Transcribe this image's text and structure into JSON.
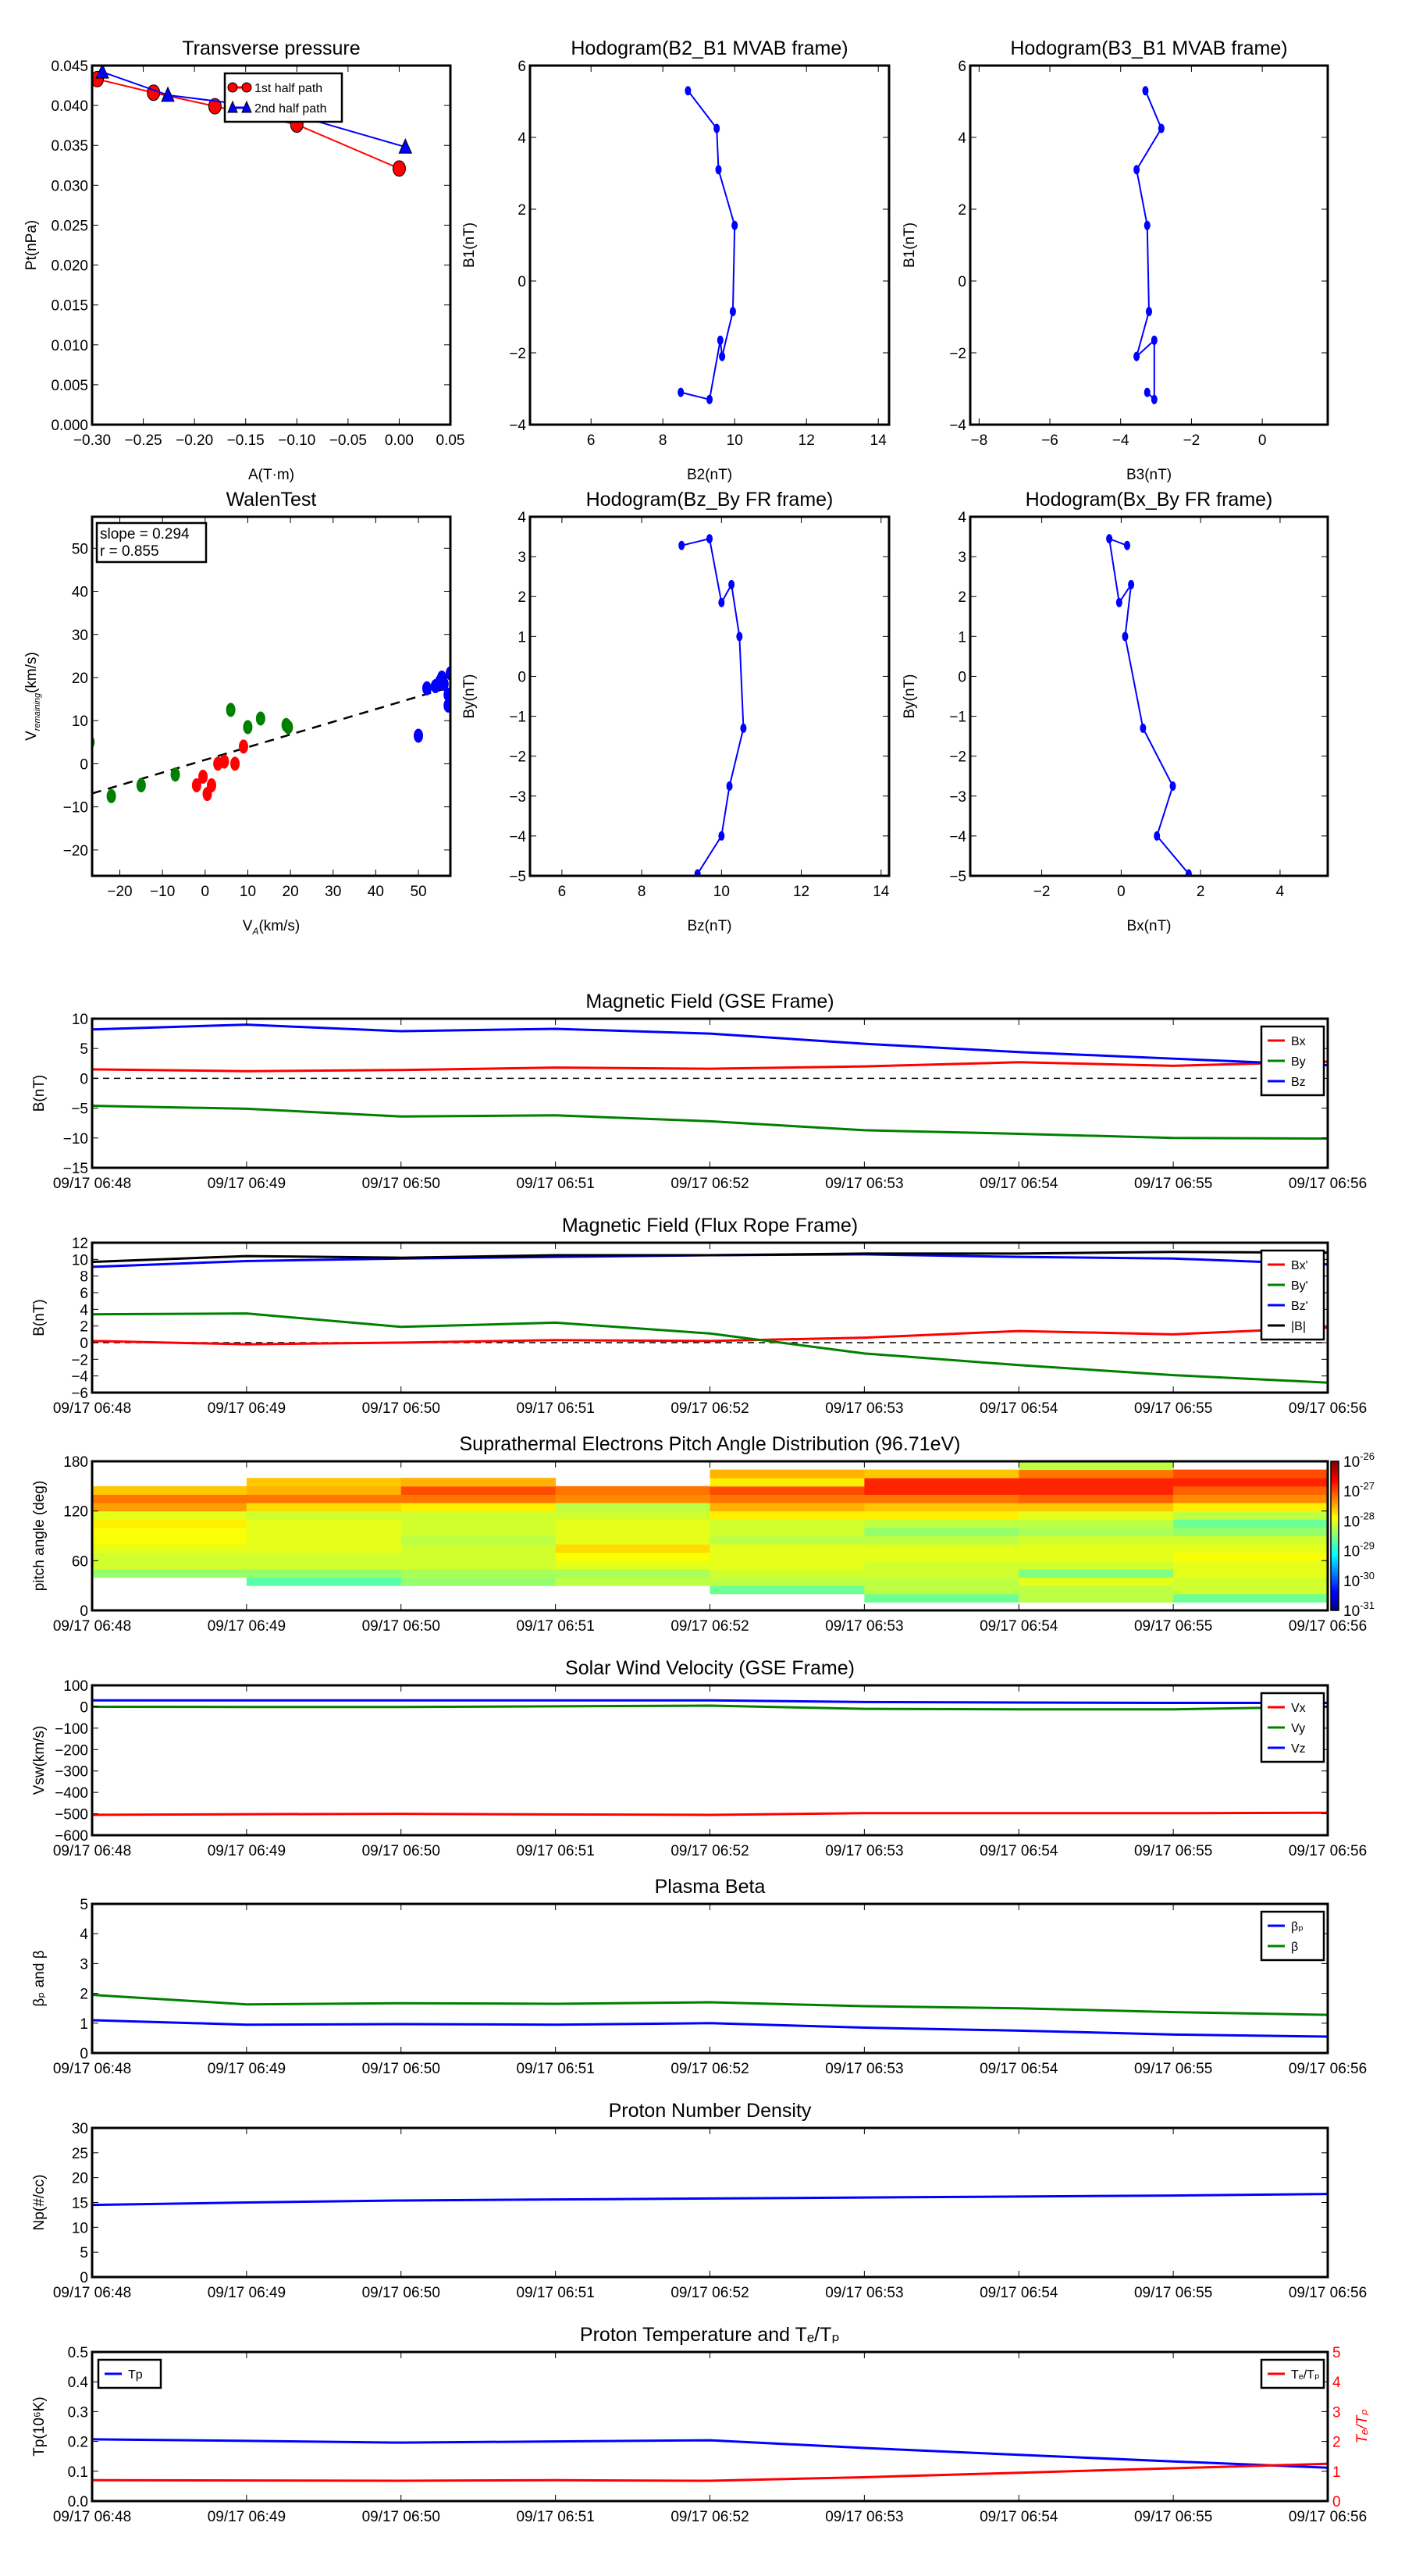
{
  "time_labels": [
    "09/17 06:48",
    "09/17 06:49",
    "09/17 06:50",
    "09/17 06:51",
    "09/17 06:52",
    "09/17 06:53",
    "09/17 06:54",
    "09/17 06:55",
    "09/17 06:56"
  ],
  "colors": {
    "red": "#ff0000",
    "green": "#008000",
    "blue": "#0000ff",
    "black": "#000000"
  },
  "chart_data": [
    {
      "type": "line",
      "title": "Transverse pressure",
      "xlabel": "A(T·m)",
      "ylabel": "Pt(nPa)",
      "xlim": [
        -0.3,
        0.05
      ],
      "ylim": [
        0,
        0.045
      ],
      "xticks": [
        -0.3,
        -0.25,
        -0.2,
        -0.15,
        -0.1,
        -0.05,
        0.0,
        0.05
      ],
      "xtick_labels": [
        "−0.30",
        "−0.25",
        "−0.20",
        "−0.15",
        "−0.10",
        "−0.05",
        "0.00",
        "0.05"
      ],
      "yticks": [
        0,
        0.005,
        0.01,
        0.015,
        0.02,
        0.025,
        0.03,
        0.035,
        0.04,
        0.045
      ],
      "ytick_labels": [
        "0.000",
        "0.005",
        "0.010",
        "0.015",
        "0.020",
        "0.025",
        "0.030",
        "0.035",
        "0.040",
        "0.045"
      ],
      "legend": "top-center",
      "series": [
        {
          "name": "1st half path",
          "color": "#ff0000",
          "marker": "circle",
          "x": [
            -0.295,
            -0.24,
            -0.18,
            -0.1,
            0.0
          ],
          "y": [
            0.0433,
            0.0416,
            0.0399,
            0.0376,
            0.0321
          ]
        },
        {
          "name": "2nd half path",
          "color": "#0000ff",
          "marker": "triangle",
          "x": [
            -0.29,
            -0.226,
            -0.126,
            0.006
          ],
          "y": [
            0.0442,
            0.0413,
            0.0397,
            0.0348
          ]
        }
      ]
    },
    {
      "type": "line",
      "title": "Hodogram(B2_B1 MVAB frame)",
      "xlabel": "B2(nT)",
      "ylabel": "B1(nT)",
      "xlim": [
        4.3,
        14.3
      ],
      "ylim": [
        -4,
        6
      ],
      "xticks": [
        6,
        8,
        10,
        12,
        14
      ],
      "xtick_labels": [
        "6",
        "8",
        "10",
        "12",
        "14"
      ],
      "yticks": [
        -4,
        -2,
        0,
        2,
        4,
        6
      ],
      "ytick_labels": [
        "−4",
        "−2",
        "0",
        "2",
        "4",
        "6"
      ],
      "series": [
        {
          "name": "B2-B1",
          "color": "#0000ff",
          "marker": "dot",
          "x": [
            8.7,
            9.5,
            9.55,
            10.0,
            9.95,
            9.65,
            9.6,
            9.3,
            8.5
          ],
          "y": [
            5.3,
            4.25,
            3.1,
            1.55,
            -0.85,
            -2.1,
            -1.65,
            -3.3,
            -3.1
          ]
        }
      ]
    },
    {
      "type": "line",
      "title": "Hodogram(B3_B1 MVAB frame)",
      "xlabel": "B3(nT)",
      "ylabel": "B1(nT)",
      "xlim": [
        -8.25,
        1.85
      ],
      "ylim": [
        -4,
        6
      ],
      "xticks": [
        -8,
        -6,
        -4,
        -2,
        0
      ],
      "xtick_labels": [
        "−8",
        "−6",
        "−4",
        "−2",
        "0"
      ],
      "yticks": [
        -4,
        -2,
        0,
        2,
        4,
        6
      ],
      "ytick_labels": [
        "−4",
        "−2",
        "0",
        "2",
        "4",
        "6"
      ],
      "series": [
        {
          "name": "B3-B1",
          "color": "#0000ff",
          "marker": "dot",
          "x": [
            -3.3,
            -2.85,
            -3.55,
            -3.25,
            -3.2,
            -3.55,
            -3.05,
            -3.05,
            -3.25
          ],
          "y": [
            5.3,
            4.25,
            3.1,
            1.55,
            -0.85,
            -2.1,
            -1.65,
            -3.3,
            -3.1
          ]
        }
      ]
    },
    {
      "type": "scatter",
      "title": "WalenTest",
      "xlabel": "V",
      "xlabel_sub": "A",
      "xlabel_tail": "(km/s)",
      "ylabel": "V",
      "ylabel_sub": "remaining",
      "ylabel_tail": "(km/s)",
      "xlim": [
        -26.5,
        57.5
      ],
      "ylim": [
        -26,
        57.3
      ],
      "xticks": [
        -20,
        -10,
        0,
        10,
        20,
        30,
        40,
        50
      ],
      "xtick_labels": [
        "−20",
        "−10",
        "0",
        "10",
        "20",
        "30",
        "40",
        "50"
      ],
      "yticks": [
        -20,
        -10,
        0,
        10,
        20,
        30,
        40,
        50
      ],
      "ytick_labels": [
        "−20",
        "−10",
        "0",
        "10",
        "20",
        "30",
        "40",
        "50"
      ],
      "annotation": [
        "slope = 0.294",
        "r = 0.855"
      ],
      "fit": {
        "slope": 0.294,
        "intercept": 0.9
      },
      "series": [
        {
          "name": "green",
          "color": "#008000",
          "x": [
            -27,
            -22,
            -15,
            -7,
            6,
            10,
            13,
            19,
            19.5
          ],
          "y": [
            5,
            -7.5,
            -5,
            -2.5,
            12.5,
            8.5,
            10.5,
            9,
            8.5
          ]
        },
        {
          "name": "red",
          "color": "#ff0000",
          "x": [
            -2,
            -0.5,
            0.5,
            1.5,
            3,
            4.5,
            7,
            9
          ],
          "y": [
            -5,
            -3,
            -7,
            -5,
            0,
            0.5,
            0,
            4
          ]
        },
        {
          "name": "blue",
          "color": "#0000ff",
          "x": [
            50,
            52,
            54,
            55,
            55.5,
            56,
            57,
            57,
            57.5
          ],
          "y": [
            6.5,
            17.5,
            18,
            19,
            20,
            18.5,
            16,
            13.5,
            21
          ]
        }
      ]
    },
    {
      "type": "line",
      "title": "Hodogram(Bz_By FR frame)",
      "xlabel": "Bz(nT)",
      "ylabel": "By(nT)",
      "xlim": [
        5.2,
        14.2
      ],
      "ylim": [
        -5,
        4
      ],
      "xticks": [
        6,
        8,
        10,
        12,
        14
      ],
      "xtick_labels": [
        "6",
        "8",
        "10",
        "12",
        "14"
      ],
      "yticks": [
        -5,
        -4,
        -3,
        -2,
        -1,
        0,
        1,
        2,
        3,
        4
      ],
      "ytick_labels": [
        "−5",
        "−4",
        "−3",
        "−2",
        "−1",
        "0",
        "1",
        "2",
        "3",
        "4"
      ],
      "series": [
        {
          "name": "Bz-By",
          "color": "#0000ff",
          "marker": "dot",
          "x": [
            9.0,
            9.7,
            10.0,
            10.25,
            10.45,
            10.55,
            10.2,
            10.0,
            9.4
          ],
          "y": [
            3.28,
            3.45,
            1.85,
            2.3,
            1.0,
            -1.3,
            -2.75,
            -4.0,
            -4.95
          ]
        }
      ]
    },
    {
      "type": "line",
      "title": "Hodogram(Bx_By FR frame)",
      "xlabel": "Bx(nT)",
      "ylabel": "By(nT)",
      "xlim": [
        -3.8,
        5.2
      ],
      "ylim": [
        -5,
        4
      ],
      "xticks": [
        -2,
        0,
        2,
        4
      ],
      "xtick_labels": [
        "−2",
        "0",
        "2",
        "4"
      ],
      "yticks": [
        -5,
        -4,
        -3,
        -2,
        -1,
        0,
        1,
        2,
        3,
        4
      ],
      "ytick_labels": [
        "−5",
        "−4",
        "−3",
        "−2",
        "−1",
        "0",
        "1",
        "2",
        "3",
        "4"
      ],
      "series": [
        {
          "name": "Bx-By",
          "color": "#0000ff",
          "marker": "dot",
          "x": [
            0.15,
            -0.3,
            -0.05,
            0.25,
            0.1,
            0.55,
            1.3,
            0.9,
            1.7
          ],
          "y": [
            3.28,
            3.45,
            1.85,
            2.3,
            1.0,
            -1.3,
            -2.75,
            -4.0,
            -4.95
          ]
        }
      ]
    },
    {
      "type": "line",
      "time": true,
      "title": "Magnetic Field (GSE Frame)",
      "ylabel": "B(nT)",
      "ylim": [
        -15,
        10
      ],
      "zero_line": true,
      "yticks": [
        -15,
        -10,
        -5,
        0,
        5,
        10
      ],
      "ytick_labels": [
        "−15",
        "−10",
        "−5",
        "0",
        "5",
        "10"
      ],
      "legend": "right",
      "series": [
        {
          "name": "Bx",
          "color": "#ff0000",
          "y": [
            1.5,
            1.2,
            1.4,
            1.8,
            1.6,
            2.0,
            2.7,
            2.1,
            2.8
          ]
        },
        {
          "name": "By",
          "color": "#008000",
          "y": [
            -4.6,
            -5.1,
            -6.4,
            -6.2,
            -7.2,
            -8.7,
            -9.3,
            -10.0,
            -10.1
          ]
        },
        {
          "name": "Bz",
          "color": "#0000ff",
          "y": [
            8.2,
            9.0,
            7.9,
            8.3,
            7.5,
            5.8,
            4.4,
            3.3,
            2.2
          ]
        }
      ]
    },
    {
      "type": "line",
      "time": true,
      "title": "Magnetic Field (Flux Rope Frame)",
      "ylabel": "B(nT)",
      "ylim": [
        -6,
        12
      ],
      "zero_line": true,
      "yticks": [
        -6,
        -4,
        -2,
        0,
        2,
        4,
        6,
        8,
        10,
        12
      ],
      "ytick_labels": [
        "−6",
        "−4",
        "−2",
        "0",
        "2",
        "4",
        "6",
        "8",
        "10",
        "12"
      ],
      "legend": "right",
      "series": [
        {
          "name": "Bx'",
          "color": "#ff0000",
          "y": [
            0.2,
            -0.2,
            0,
            0.3,
            0.2,
            0.6,
            1.4,
            1.0,
            1.8
          ]
        },
        {
          "name": "By'",
          "color": "#008000",
          "y": [
            3.4,
            3.5,
            1.9,
            2.4,
            1.1,
            -1.3,
            -2.7,
            -3.9,
            -4.8
          ]
        },
        {
          "name": "Bz'",
          "color": "#0000ff",
          "y": [
            9.1,
            9.8,
            10.1,
            10.3,
            10.5,
            10.6,
            10.3,
            10.1,
            9.4
          ]
        },
        {
          "name": "|B|",
          "color": "#000000",
          "y": [
            9.7,
            10.4,
            10.2,
            10.5,
            10.5,
            10.7,
            10.7,
            10.9,
            10.8
          ]
        }
      ]
    },
    {
      "type": "heatmap",
      "time": true,
      "title": "Suprathermal Electrons Pitch Angle Distribution (96.71eV)",
      "ylabel": "pitch angle (deg)",
      "ylim": [
        0,
        180
      ],
      "yticks": [
        0,
        60,
        120,
        180
      ],
      "ytick_labels": [
        "0",
        "60",
        "120",
        "180"
      ],
      "bin_deg": 10,
      "clim_log10": [
        -31,
        -26
      ],
      "colorbar_base": "10",
      "colorbar_exponents": [
        "-26",
        "-27",
        "-28",
        "-29",
        "-30",
        "-31"
      ],
      "columns_log10": [
        [
          null,
          null,
          null,
          null,
          -28.4,
          -28.1,
          -28.1,
          -28.0,
          -27.9,
          -27.9,
          -27.8,
          -28.0,
          -27.4,
          -27.2,
          -27.6,
          null,
          null,
          null
        ],
        [
          null,
          null,
          null,
          -28.7,
          -28.4,
          -28.1,
          -28.1,
          -28.0,
          -28.0,
          -28.0,
          -28.0,
          -28.1,
          -27.7,
          -27.2,
          -27.5,
          -27.6,
          null,
          null
        ],
        [
          null,
          null,
          null,
          -28.4,
          -28.3,
          -28.1,
          -28.1,
          -28.1,
          -28.2,
          -28.1,
          -28.1,
          -28.1,
          -27.8,
          -27.2,
          -27.0,
          -27.5,
          null,
          null
        ],
        [
          null,
          null,
          null,
          -28.2,
          -28.3,
          -28.0,
          -27.9,
          -27.7,
          -28.0,
          -28.0,
          -28.0,
          -28.1,
          -28.2,
          -27.3,
          -27.2,
          null,
          null,
          null
        ],
        [
          null,
          null,
          -28.6,
          -28.2,
          -28.1,
          -28.0,
          -28.0,
          -28.0,
          -28.2,
          -28.1,
          -28.1,
          -27.8,
          -27.5,
          -27.2,
          -27.0,
          -27.8,
          -27.5,
          null
        ],
        [
          null,
          -28.6,
          -28.2,
          -28.2,
          -28.1,
          -28.1,
          -28.0,
          -28.0,
          -28.2,
          -28.4,
          -28.2,
          -27.8,
          -27.6,
          -27.2,
          -26.8,
          -26.8,
          -27.6,
          null
        ],
        [
          null,
          -28.2,
          -28.2,
          -28.0,
          -28.5,
          -28.1,
          -28.0,
          -28.0,
          -28.1,
          -28.3,
          -28.2,
          -28.0,
          -27.6,
          -27.1,
          -26.8,
          -26.8,
          -27.2,
          -28.2
        ],
        [
          null,
          -28.6,
          -28.1,
          -28.1,
          -28.0,
          -28.0,
          -27.9,
          -28.0,
          -28.1,
          -28.4,
          -28.6,
          -28.2,
          -27.8,
          -27.3,
          -27.1,
          -26.8,
          -27.0,
          null
        ]
      ]
    },
    {
      "type": "line",
      "time": true,
      "title": "Solar Wind Velocity (GSE Frame)",
      "ylabel": "Vsw(km/s)",
      "ylim": [
        -600,
        100
      ],
      "yticks": [
        -600,
        -500,
        -400,
        -300,
        -200,
        -100,
        0,
        100
      ],
      "ytick_labels": [
        "−600",
        "−500",
        "−400",
        "−300",
        "−200",
        "−100",
        "0",
        "100"
      ],
      "legend": "right",
      "series": [
        {
          "name": "Vx",
          "color": "#ff0000",
          "y": [
            -505,
            -502,
            -500,
            -503,
            -505,
            -497,
            -497,
            -497,
            -495
          ]
        },
        {
          "name": "Vy",
          "color": "#008000",
          "y": [
            0,
            -1,
            -1,
            2,
            5,
            -10,
            -12,
            -12,
            0
          ]
        },
        {
          "name": "Vz",
          "color": "#0000ff",
          "y": [
            30,
            30,
            30,
            30,
            30,
            22,
            20,
            18,
            18
          ]
        }
      ]
    },
    {
      "type": "line",
      "time": true,
      "title": "Plasma Beta",
      "ylabel": "βₚ and β",
      "ylim": [
        0,
        5
      ],
      "yticks": [
        0,
        1,
        2,
        3,
        4,
        5
      ],
      "ytick_labels": [
        "0",
        "1",
        "2",
        "3",
        "4",
        "5"
      ],
      "legend": "right",
      "series": [
        {
          "name": "βₚ",
          "color": "#0000ff",
          "y": [
            1.1,
            0.95,
            0.97,
            0.95,
            1.0,
            0.85,
            0.75,
            0.62,
            0.55
          ]
        },
        {
          "name": "β",
          "color": "#008000",
          "y": [
            1.95,
            1.63,
            1.67,
            1.65,
            1.7,
            1.57,
            1.5,
            1.37,
            1.28
          ]
        }
      ]
    },
    {
      "type": "line",
      "time": true,
      "title": "Proton Number Density",
      "ylabel": "Np(#/cc)",
      "ylim": [
        0,
        30
      ],
      "yticks": [
        0,
        5,
        10,
        15,
        20,
        25,
        30
      ],
      "ytick_labels": [
        "0",
        "5",
        "10",
        "15",
        "20",
        "25",
        "30"
      ],
      "series": [
        {
          "name": "Np",
          "color": "#0000ff",
          "y": [
            14.5,
            15,
            15.4,
            15.6,
            15.8,
            16,
            16.2,
            16.4,
            16.7
          ]
        }
      ]
    },
    {
      "type": "line",
      "time": true,
      "title": "Proton Temperature and Tₑ/Tₚ",
      "ylabel": "Tp(10⁶K)",
      "ylim": [
        0,
        0.5
      ],
      "yticks": [
        0,
        0.1,
        0.2,
        0.3,
        0.4,
        0.5
      ],
      "ytick_labels": [
        "0.0",
        "0.1",
        "0.2",
        "0.3",
        "0.4",
        "0.5"
      ],
      "legend": "left",
      "series": [
        {
          "name": "Tp",
          "color": "#0000ff",
          "y": [
            0.207,
            0.202,
            0.196,
            0.2,
            0.204,
            0.178,
            0.155,
            0.133,
            0.112
          ]
        }
      ],
      "right_axis": {
        "ylabel": "Tₑ/Tₚ",
        "ylim": [
          0,
          5
        ],
        "yticks": [
          0,
          1,
          2,
          3,
          4,
          5
        ],
        "ytick_labels": [
          "0",
          "1",
          "2",
          "3",
          "4",
          "5"
        ],
        "color": "#ff0000",
        "legend": "right",
        "series": [
          {
            "name": "Tₑ/Tₚ",
            "color": "#ff0000",
            "y": [
              0.7,
              0.69,
              0.68,
              0.7,
              0.68,
              0.8,
              0.95,
              1.1,
              1.25
            ]
          }
        ]
      }
    }
  ]
}
